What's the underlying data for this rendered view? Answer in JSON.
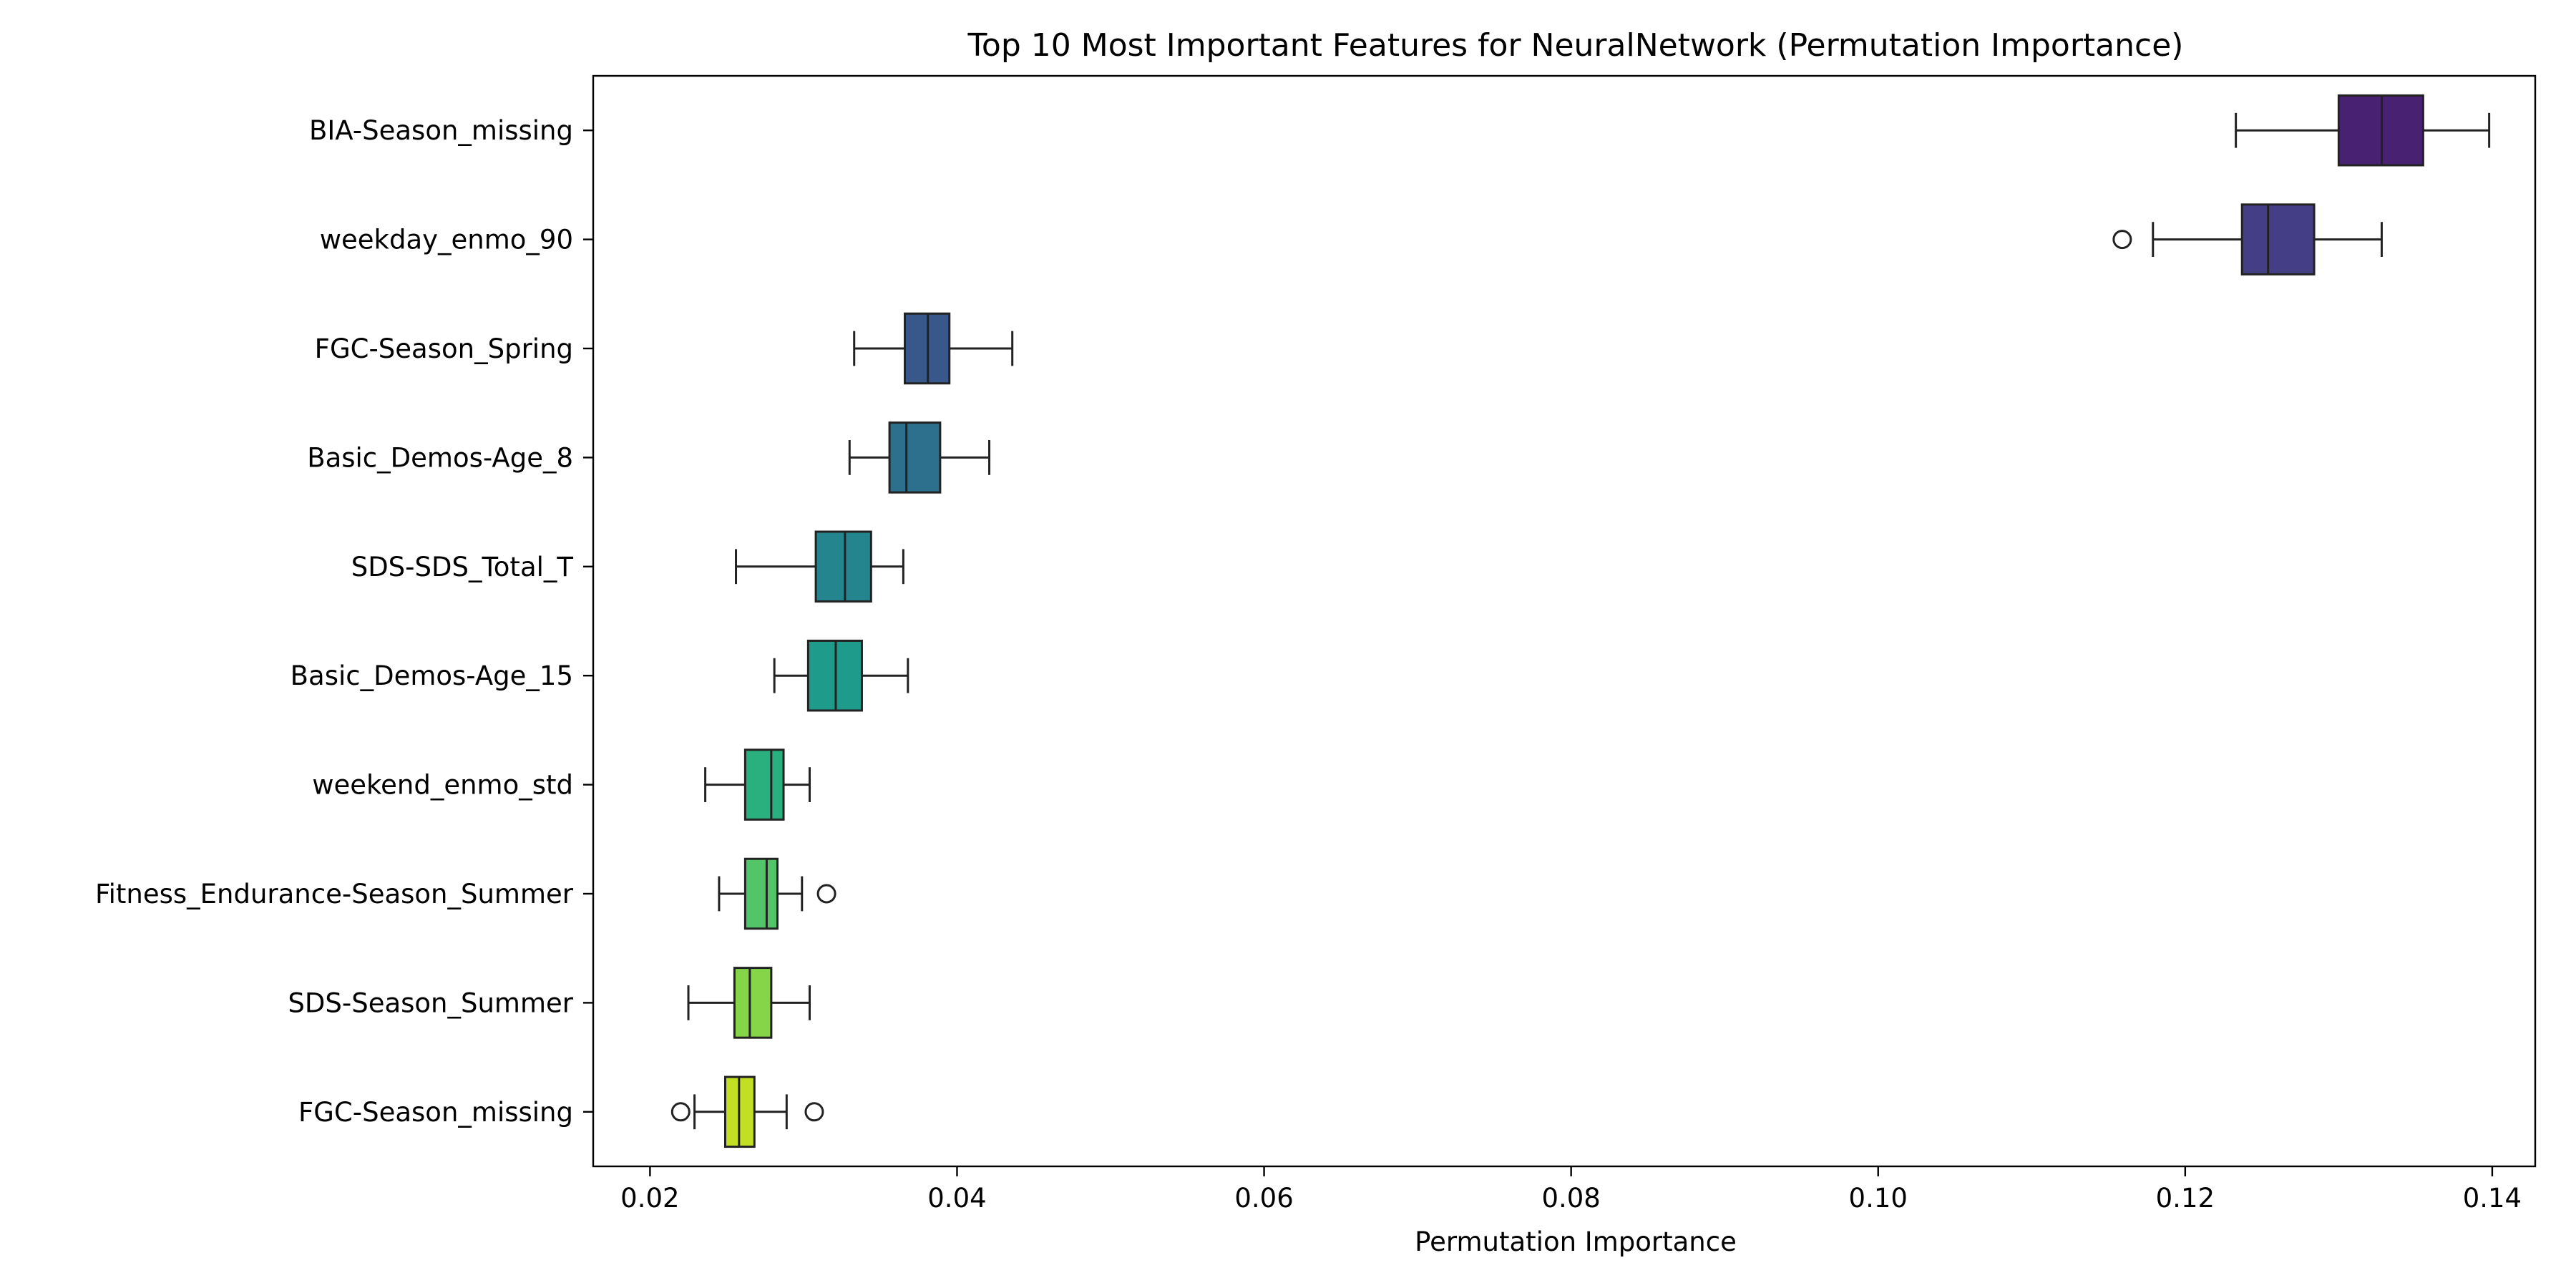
{
  "chart_data": {
    "type": "box",
    "orientation": "horizontal",
    "title": "Top 10 Most Important Features for NeuralNetwork (Permutation Importance)",
    "xlabel": "Permutation Importance",
    "ylabel": "",
    "xlim": [
      0.0163,
      0.1428
    ],
    "xticks": [
      0.02,
      0.04,
      0.06,
      0.08,
      0.1,
      0.12,
      0.14
    ],
    "xtick_labels": [
      "0.02",
      "0.04",
      "0.06",
      "0.08",
      "0.10",
      "0.12",
      "0.14"
    ],
    "grid": false,
    "legend": "none",
    "palette": "viridis",
    "categories": [
      "BIA-Season_missing",
      "weekday_enmo_90",
      "FGC-Season_Spring",
      "Basic_Demos-Age_8",
      "SDS-SDS_Total_T",
      "Basic_Demos-Age_15",
      "weekend_enmo_std",
      "Fitness_Endurance-Season_Summer",
      "SDS-Season_Summer",
      "FGC-Season_missing"
    ],
    "boxes": [
      {
        "whisker_low": 0.1233,
        "q1": 0.13,
        "median": 0.1328,
        "q3": 0.1355,
        "whisker_high": 0.1398,
        "outliers": [],
        "color": "#482173"
      },
      {
        "whisker_low": 0.1179,
        "q1": 0.1237,
        "median": 0.1254,
        "q3": 0.1284,
        "whisker_high": 0.1328,
        "outliers": [
          0.1159
        ],
        "color": "#433e85"
      },
      {
        "whisker_low": 0.0333,
        "q1": 0.0366,
        "median": 0.0381,
        "q3": 0.0395,
        "whisker_high": 0.0436,
        "outliers": [],
        "color": "#38588c"
      },
      {
        "whisker_low": 0.033,
        "q1": 0.0356,
        "median": 0.0367,
        "q3": 0.0389,
        "whisker_high": 0.0421,
        "outliers": [],
        "color": "#2d708e"
      },
      {
        "whisker_low": 0.0256,
        "q1": 0.0308,
        "median": 0.0327,
        "q3": 0.0344,
        "whisker_high": 0.0365,
        "outliers": [],
        "color": "#25858e"
      },
      {
        "whisker_low": 0.0281,
        "q1": 0.0303,
        "median": 0.0321,
        "q3": 0.0338,
        "whisker_high": 0.0368,
        "outliers": [],
        "color": "#1e9b8a"
      },
      {
        "whisker_low": 0.0236,
        "q1": 0.0262,
        "median": 0.0279,
        "q3": 0.0287,
        "whisker_high": 0.0304,
        "outliers": [],
        "color": "#2ab07f"
      },
      {
        "whisker_low": 0.0245,
        "q1": 0.0262,
        "median": 0.0276,
        "q3": 0.0283,
        "whisker_high": 0.0299,
        "outliers": [
          0.0315
        ],
        "color": "#52c569"
      },
      {
        "whisker_low": 0.0225,
        "q1": 0.0255,
        "median": 0.0265,
        "q3": 0.0279,
        "whisker_high": 0.0304,
        "outliers": [],
        "color": "#86d549"
      },
      {
        "whisker_low": 0.0229,
        "q1": 0.0249,
        "median": 0.0258,
        "q3": 0.0268,
        "whisker_high": 0.0289,
        "outliers": [
          0.022,
          0.0307
        ],
        "color": "#c2df23"
      }
    ]
  }
}
